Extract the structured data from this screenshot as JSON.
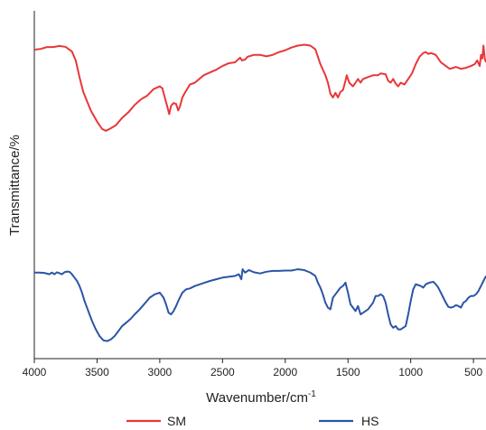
{
  "chart_data": {
    "type": "line",
    "title": "",
    "xlabel": "Wavenumber/cm",
    "xlabel_superscript": "-1",
    "ylabel": "Transmittance/%",
    "xlim": [
      4000,
      400
    ],
    "x_reversed": true,
    "xticks": [
      4000,
      3500,
      3000,
      2500,
      2000,
      1500,
      1000,
      500
    ],
    "y_ticks_labeled": false,
    "grid": false,
    "legend_position": "bottom",
    "series": [
      {
        "name": "SM",
        "color": "#e8373a",
        "points": [
          [
            4000,
            0.878
          ],
          [
            3950,
            0.882
          ],
          [
            3900,
            0.892
          ],
          [
            3850,
            0.892
          ],
          [
            3800,
            0.898
          ],
          [
            3750,
            0.893
          ],
          [
            3700,
            0.868
          ],
          [
            3670,
            0.82
          ],
          [
            3640,
            0.73
          ],
          [
            3610,
            0.65
          ],
          [
            3580,
            0.6
          ],
          [
            3550,
            0.55
          ],
          [
            3500,
            0.49
          ],
          [
            3460,
            0.45
          ],
          [
            3430,
            0.44
          ],
          [
            3400,
            0.45
          ],
          [
            3350,
            0.47
          ],
          [
            3300,
            0.51
          ],
          [
            3250,
            0.54
          ],
          [
            3200,
            0.58
          ],
          [
            3150,
            0.61
          ],
          [
            3100,
            0.63
          ],
          [
            3050,
            0.665
          ],
          [
            3000,
            0.68
          ],
          [
            2980,
            0.67
          ],
          [
            2960,
            0.62
          ],
          [
            2940,
            0.57
          ],
          [
            2925,
            0.53
          ],
          [
            2910,
            0.575
          ],
          [
            2890,
            0.59
          ],
          [
            2870,
            0.585
          ],
          [
            2853,
            0.55
          ],
          [
            2840,
            0.57
          ],
          [
            2820,
            0.62
          ],
          [
            2800,
            0.645
          ],
          [
            2760,
            0.69
          ],
          [
            2720,
            0.7
          ],
          [
            2650,
            0.74
          ],
          [
            2600,
            0.755
          ],
          [
            2550,
            0.77
          ],
          [
            2500,
            0.79
          ],
          [
            2450,
            0.805
          ],
          [
            2400,
            0.81
          ],
          [
            2360,
            0.835
          ],
          [
            2345,
            0.82
          ],
          [
            2320,
            0.825
          ],
          [
            2300,
            0.84
          ],
          [
            2250,
            0.85
          ],
          [
            2200,
            0.85
          ],
          [
            2150,
            0.842
          ],
          [
            2100,
            0.85
          ],
          [
            2050,
            0.865
          ],
          [
            2000,
            0.875
          ],
          [
            1950,
            0.89
          ],
          [
            1900,
            0.9
          ],
          [
            1850,
            0.905
          ],
          [
            1800,
            0.9
          ],
          [
            1760,
            0.88
          ],
          [
            1740,
            0.84
          ],
          [
            1720,
            0.8
          ],
          [
            1700,
            0.77
          ],
          [
            1680,
            0.74
          ],
          [
            1660,
            0.7
          ],
          [
            1640,
            0.64
          ],
          [
            1620,
            0.62
          ],
          [
            1600,
            0.645
          ],
          [
            1580,
            0.62
          ],
          [
            1560,
            0.65
          ],
          [
            1540,
            0.66
          ],
          [
            1520,
            0.71
          ],
          [
            1510,
            0.74
          ],
          [
            1490,
            0.7
          ],
          [
            1460,
            0.68
          ],
          [
            1440,
            0.7
          ],
          [
            1420,
            0.72
          ],
          [
            1400,
            0.7
          ],
          [
            1380,
            0.72
          ],
          [
            1340,
            0.73
          ],
          [
            1300,
            0.74
          ],
          [
            1260,
            0.74
          ],
          [
            1240,
            0.75
          ],
          [
            1200,
            0.745
          ],
          [
            1180,
            0.71
          ],
          [
            1160,
            0.7
          ],
          [
            1140,
            0.72
          ],
          [
            1120,
            0.695
          ],
          [
            1100,
            0.68
          ],
          [
            1080,
            0.7
          ],
          [
            1050,
            0.69
          ],
          [
            1020,
            0.72
          ],
          [
            990,
            0.75
          ],
          [
            960,
            0.8
          ],
          [
            930,
            0.84
          ],
          [
            900,
            0.86
          ],
          [
            880,
            0.865
          ],
          [
            860,
            0.855
          ],
          [
            840,
            0.86
          ],
          [
            800,
            0.85
          ],
          [
            760,
            0.81
          ],
          [
            720,
            0.79
          ],
          [
            690,
            0.775
          ],
          [
            660,
            0.78
          ],
          [
            640,
            0.785
          ],
          [
            600,
            0.775
          ],
          [
            560,
            0.78
          ],
          [
            520,
            0.79
          ],
          [
            490,
            0.8
          ],
          [
            470,
            0.82
          ],
          [
            450,
            0.79
          ],
          [
            440,
            0.85
          ],
          [
            430,
            0.83
          ],
          [
            420,
            0.9
          ],
          [
            410,
            0.83
          ],
          [
            400,
            0.81
          ]
        ]
      },
      {
        "name": "HS",
        "color": "#2b55a6",
        "points": [
          [
            4000,
            0.45
          ],
          [
            3960,
            0.45
          ],
          [
            3920,
            0.448
          ],
          [
            3880,
            0.44
          ],
          [
            3860,
            0.45
          ],
          [
            3840,
            0.44
          ],
          [
            3820,
            0.452
          ],
          [
            3800,
            0.446
          ],
          [
            3780,
            0.44
          ],
          [
            3760,
            0.452
          ],
          [
            3740,
            0.456
          ],
          [
            3720,
            0.455
          ],
          [
            3700,
            0.44
          ],
          [
            3680,
            0.42
          ],
          [
            3660,
            0.4
          ],
          [
            3640,
            0.37
          ],
          [
            3620,
            0.33
          ],
          [
            3600,
            0.28
          ],
          [
            3570,
            0.22
          ],
          [
            3540,
            0.16
          ],
          [
            3510,
            0.11
          ],
          [
            3480,
            0.07
          ],
          [
            3450,
            0.045
          ],
          [
            3420,
            0.04
          ],
          [
            3390,
            0.05
          ],
          [
            3360,
            0.07
          ],
          [
            3330,
            0.1
          ],
          [
            3300,
            0.13
          ],
          [
            3260,
            0.155
          ],
          [
            3230,
            0.175
          ],
          [
            3200,
            0.2
          ],
          [
            3160,
            0.23
          ],
          [
            3120,
            0.265
          ],
          [
            3080,
            0.3
          ],
          [
            3040,
            0.32
          ],
          [
            3000,
            0.33
          ],
          [
            2970,
            0.3
          ],
          [
            2950,
            0.26
          ],
          [
            2930,
            0.21
          ],
          [
            2910,
            0.2
          ],
          [
            2890,
            0.22
          ],
          [
            2870,
            0.25
          ],
          [
            2850,
            0.285
          ],
          [
            2820,
            0.33
          ],
          [
            2790,
            0.35
          ],
          [
            2760,
            0.355
          ],
          [
            2720,
            0.37
          ],
          [
            2680,
            0.38
          ],
          [
            2640,
            0.39
          ],
          [
            2600,
            0.4
          ],
          [
            2550,
            0.41
          ],
          [
            2500,
            0.42
          ],
          [
            2450,
            0.425
          ],
          [
            2400,
            0.43
          ],
          [
            2370,
            0.44
          ],
          [
            2350,
            0.41
          ],
          [
            2340,
            0.47
          ],
          [
            2320,
            0.45
          ],
          [
            2290,
            0.465
          ],
          [
            2250,
            0.452
          ],
          [
            2200,
            0.445
          ],
          [
            2150,
            0.455
          ],
          [
            2100,
            0.46
          ],
          [
            2050,
            0.46
          ],
          [
            2000,
            0.462
          ],
          [
            1950,
            0.462
          ],
          [
            1900,
            0.47
          ],
          [
            1850,
            0.465
          ],
          [
            1800,
            0.45
          ],
          [
            1760,
            0.43
          ],
          [
            1740,
            0.39
          ],
          [
            1720,
            0.36
          ],
          [
            1700,
            0.32
          ],
          [
            1680,
            0.27
          ],
          [
            1660,
            0.24
          ],
          [
            1640,
            0.23
          ],
          [
            1620,
            0.3
          ],
          [
            1600,
            0.32
          ],
          [
            1580,
            0.34
          ],
          [
            1560,
            0.36
          ],
          [
            1540,
            0.37
          ],
          [
            1520,
            0.39
          ],
          [
            1500,
            0.33
          ],
          [
            1480,
            0.26
          ],
          [
            1460,
            0.24
          ],
          [
            1440,
            0.22
          ],
          [
            1420,
            0.25
          ],
          [
            1400,
            0.2
          ],
          [
            1380,
            0.21
          ],
          [
            1360,
            0.22
          ],
          [
            1340,
            0.23
          ],
          [
            1320,
            0.25
          ],
          [
            1300,
            0.27
          ],
          [
            1280,
            0.31
          ],
          [
            1260,
            0.31
          ],
          [
            1240,
            0.32
          ],
          [
            1220,
            0.31
          ],
          [
            1200,
            0.27
          ],
          [
            1180,
            0.2
          ],
          [
            1160,
            0.14
          ],
          [
            1140,
            0.12
          ],
          [
            1120,
            0.13
          ],
          [
            1100,
            0.11
          ],
          [
            1080,
            0.11
          ],
          [
            1060,
            0.12
          ],
          [
            1040,
            0.13
          ],
          [
            1020,
            0.2
          ],
          [
            1000,
            0.28
          ],
          [
            980,
            0.35
          ],
          [
            960,
            0.38
          ],
          [
            940,
            0.375
          ],
          [
            920,
            0.37
          ],
          [
            900,
            0.36
          ],
          [
            880,
            0.38
          ],
          [
            850,
            0.39
          ],
          [
            820,
            0.395
          ],
          [
            800,
            0.38
          ],
          [
            780,
            0.36
          ],
          [
            760,
            0.33
          ],
          [
            740,
            0.3
          ],
          [
            720,
            0.27
          ],
          [
            700,
            0.245
          ],
          [
            680,
            0.24
          ],
          [
            660,
            0.245
          ],
          [
            640,
            0.255
          ],
          [
            620,
            0.25
          ],
          [
            600,
            0.24
          ],
          [
            580,
            0.27
          ],
          [
            560,
            0.28
          ],
          [
            540,
            0.3
          ],
          [
            520,
            0.31
          ],
          [
            500,
            0.31
          ],
          [
            480,
            0.32
          ],
          [
            460,
            0.34
          ],
          [
            440,
            0.37
          ],
          [
            420,
            0.4
          ],
          [
            400,
            0.43
          ]
        ]
      }
    ]
  }
}
